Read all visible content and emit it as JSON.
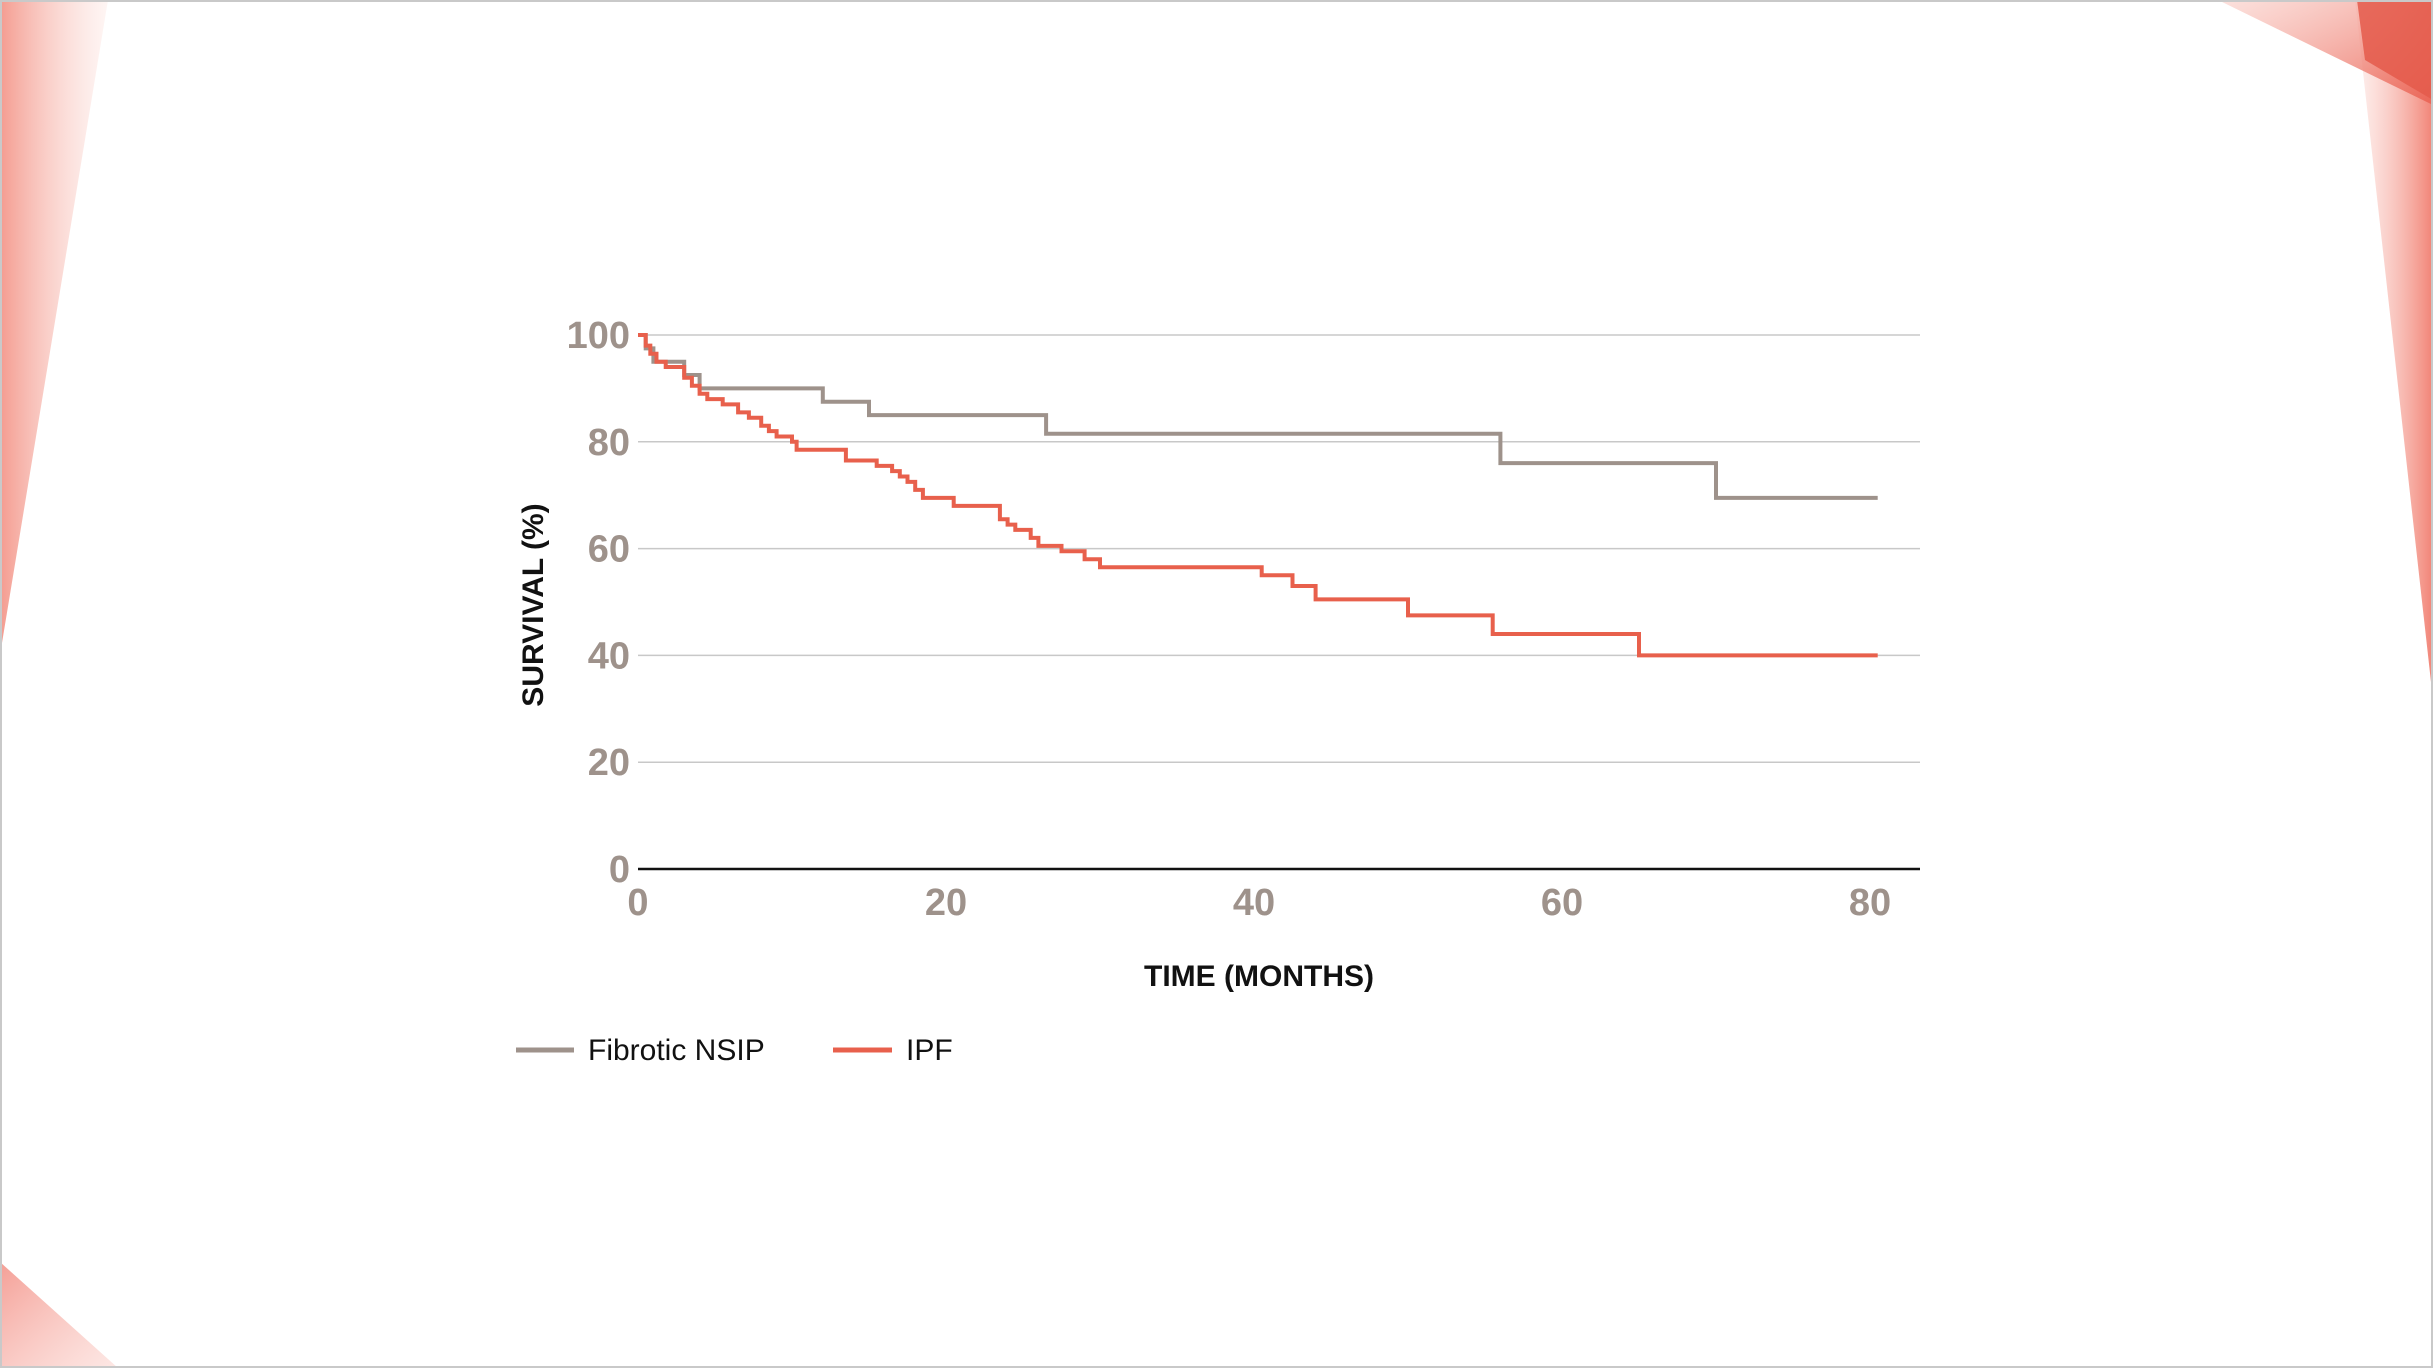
{
  "chart_data": {
    "type": "line",
    "subtype": "step",
    "title": "",
    "xlabel": "TIME (MONTHS)",
    "ylabel": "SURVIVAL (%)",
    "xlim": [
      0,
      83
    ],
    "ylim": [
      0,
      100
    ],
    "xticks": [
      0,
      20,
      40,
      60,
      80
    ],
    "yticks": [
      0,
      20,
      40,
      60,
      80,
      100
    ],
    "grid": "horizontal",
    "legend_position": "bottom-left",
    "series": [
      {
        "name": "Fibrotic NSIP",
        "color": "#9e928b",
        "points": [
          [
            0,
            100
          ],
          [
            0.5,
            97.5
          ],
          [
            1,
            95
          ],
          [
            3,
            92.5
          ],
          [
            4,
            90
          ],
          [
            12,
            87.5
          ],
          [
            15,
            85
          ],
          [
            26.5,
            81.5
          ],
          [
            56,
            76
          ],
          [
            70,
            69.5
          ],
          [
            80.5,
            69.5
          ]
        ]
      },
      {
        "name": "IPF",
        "color": "#e8604c",
        "points": [
          [
            0,
            100
          ],
          [
            0.5,
            98
          ],
          [
            0.8,
            96.5
          ],
          [
            1.2,
            95
          ],
          [
            1.8,
            94
          ],
          [
            3,
            92
          ],
          [
            3.5,
            90.5
          ],
          [
            4,
            89
          ],
          [
            4.5,
            88
          ],
          [
            5.5,
            87
          ],
          [
            6.5,
            85.5
          ],
          [
            7.2,
            84.5
          ],
          [
            8,
            83
          ],
          [
            8.5,
            82
          ],
          [
            9,
            81
          ],
          [
            10,
            80
          ],
          [
            10.3,
            78.5
          ],
          [
            13.5,
            76.5
          ],
          [
            15.5,
            75.5
          ],
          [
            16.5,
            74.5
          ],
          [
            17,
            73.5
          ],
          [
            17.5,
            72.5
          ],
          [
            18,
            71
          ],
          [
            18.5,
            69.5
          ],
          [
            20.5,
            68
          ],
          [
            23.5,
            65.5
          ],
          [
            24,
            64.5
          ],
          [
            24.5,
            63.5
          ],
          [
            25.5,
            62
          ],
          [
            26,
            60.5
          ],
          [
            27.5,
            59.5
          ],
          [
            29,
            58
          ],
          [
            30,
            56.5
          ],
          [
            40.5,
            55
          ],
          [
            42.5,
            53
          ],
          [
            44,
            50.5
          ],
          [
            50,
            47.5
          ],
          [
            55.5,
            44
          ],
          [
            65,
            40
          ],
          [
            80.5,
            40
          ]
        ]
      }
    ]
  },
  "decor": {
    "accent_color": "#e8604c",
    "axis_color": "#9e928b"
  }
}
